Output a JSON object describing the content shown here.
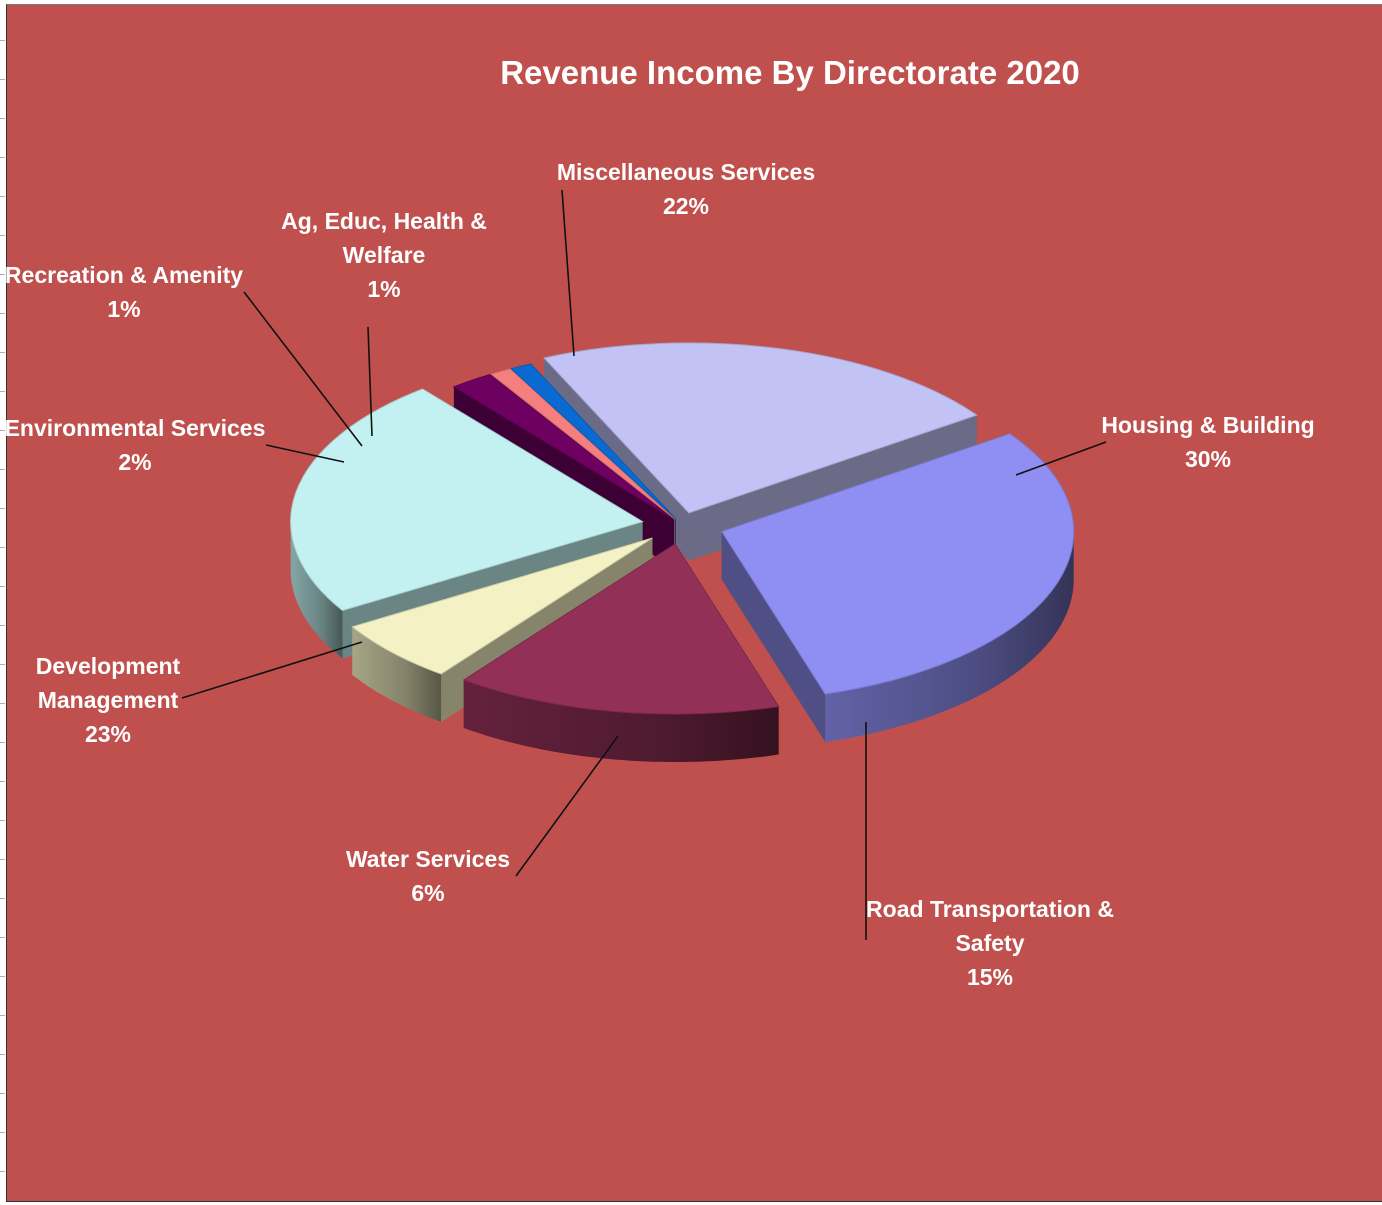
{
  "colors": {
    "plot_background": "#c0504d",
    "label_text": "#ffffff",
    "leader_line": "#111111"
  },
  "chart_data": {
    "type": "pie",
    "style": "3d-exploded",
    "title": "Revenue Income By Directorate 2020",
    "units": "%",
    "legend": "none",
    "slices": [
      {
        "label_lines": [
          "Housing & Building"
        ],
        "value_label": "30%",
        "value": 30,
        "color": "#8f8ff3"
      },
      {
        "label_lines": [
          "Road Transportation &",
          "Safety"
        ],
        "value_label": "15%",
        "value": 15,
        "color": "#933058"
      },
      {
        "label_lines": [
          "Water Services"
        ],
        "value_label": "6%",
        "value": 6,
        "color": "#f4f2c4"
      },
      {
        "label_lines": [
          "Development",
          "Management"
        ],
        "value_label": "23%",
        "value": 23,
        "color": "#c3f1f1"
      },
      {
        "label_lines": [
          "Environmental  Services"
        ],
        "value_label": "2%",
        "value": 2,
        "color": "#6d0060"
      },
      {
        "label_lines": [
          "Recreation & Amenity"
        ],
        "value_label": "1%",
        "value": 1,
        "color": "#f57f7f"
      },
      {
        "label_lines": [
          "Ag, Educ, Health &",
          "Welfare"
        ],
        "value_label": "1%",
        "value": 1,
        "color": "#0b6ad1"
      },
      {
        "label_lines": [
          "Miscellaneous  Services"
        ],
        "value_label": "22%",
        "value": 22,
        "color": "#c2c2f5"
      }
    ]
  }
}
